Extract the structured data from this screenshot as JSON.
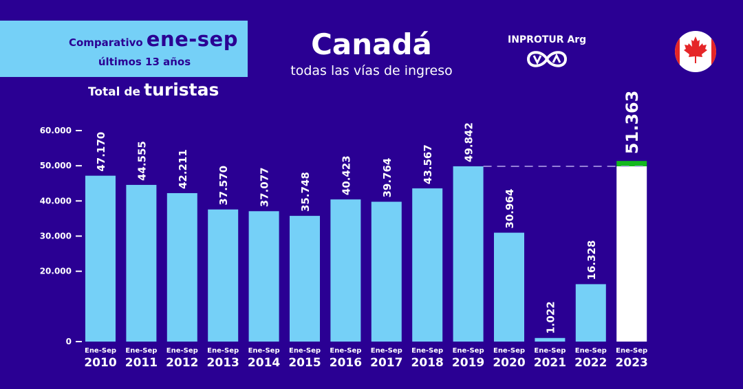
{
  "header": {
    "box_prefix": "Comparativo",
    "box_period": "ene-sep",
    "box_subtitle": "últimos 13 años",
    "total_prefix": "Total de",
    "total_word": "turistas",
    "title": "Canadá",
    "subtitle": "todas las vías de ingreso",
    "logo_text": "INPROTUR Arg",
    "flag_icon": "canada-flag-icon"
  },
  "colors": {
    "background": "#2a0093",
    "bar": "#75d0f7",
    "highlight_bar": "#ffffff",
    "growth_segment": "#13b81e",
    "text": "#ffffff",
    "reference_line": "#b9aaf0"
  },
  "chart_data": {
    "type": "bar",
    "title": "Canadá — todas las vías de ingreso",
    "ylabel": "Total de turistas",
    "xlabel": "",
    "ylim": [
      0,
      60000
    ],
    "yticks": [
      0,
      20000,
      30000,
      40000,
      50000,
      60000
    ],
    "ytick_labels": [
      "0",
      "20.000",
      "30.000",
      "40.000",
      "50.000",
      "60.000"
    ],
    "category_prefix": "Ene-Sep",
    "categories": [
      "2010",
      "2011",
      "2012",
      "2013",
      "2014",
      "2015",
      "2016",
      "2017",
      "2018",
      "2019",
      "2020",
      "2021",
      "2022",
      "2023"
    ],
    "values": [
      47170,
      44555,
      42211,
      37570,
      37077,
      35748,
      40423,
      39764,
      43567,
      49842,
      30964,
      1022,
      16328,
      51363
    ],
    "value_labels": [
      "47.170",
      "44.555",
      "42.211",
      "37.570",
      "37.077",
      "35.748",
      "40.423",
      "39.764",
      "43.567",
      "49.842",
      "30.964",
      "1.022",
      "16.328",
      "51.363"
    ],
    "highlight_index": 13,
    "reference_line": {
      "value": 49842,
      "from_category": "2019",
      "to_category": "2023",
      "style": "dashed"
    },
    "grid": false,
    "legend": "none"
  }
}
